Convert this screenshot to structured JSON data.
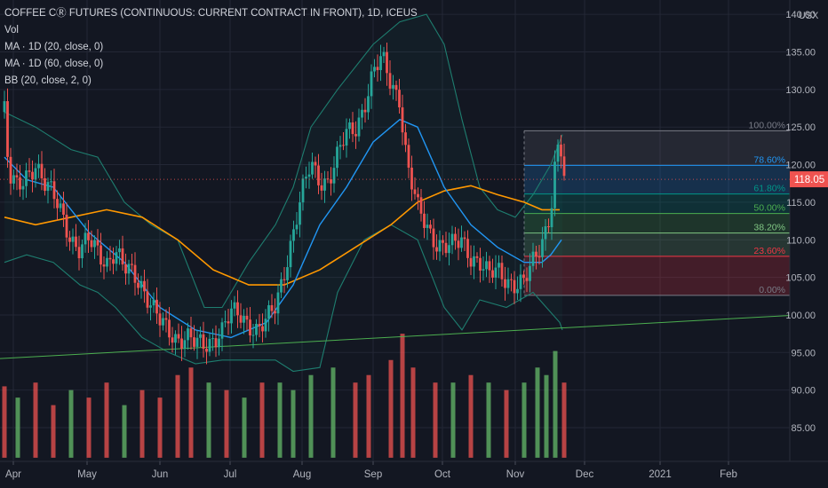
{
  "header": {
    "title": "COFFEE CⓇ FUTURES (CONTINUOUS: CURRENT CONTRACT IN FRONT), 1D, ICEUS",
    "indicators": [
      "Vol",
      "MA · 1D (20, close, 0)",
      "MA · 1D (60, close, 0)",
      "BB (20, close, 2, 0)"
    ],
    "currency": "USX"
  },
  "colors": {
    "background": "#131722",
    "grid": "#232735",
    "text": "#b2b5be",
    "up": "#26a69a",
    "down": "#ef5350",
    "ma20": "#2196f3",
    "ma60": "#ff9800",
    "bb": "#1e7d6f",
    "trendline": "#4caf50"
  },
  "chart_data": {
    "type": "candlestick",
    "symbol": "COFFEE CⓇ FUTURES (CONTINUOUS: CURRENT CONTRACT IN FRONT), 1D, ICEUS",
    "y_range": [
      80,
      145
    ],
    "y_ticks": [
      "85.00",
      "90.00",
      "95.00",
      "100.00",
      "105.00",
      "110.00",
      "115.00",
      "120.00",
      "125.00",
      "130.00",
      "135.00",
      "140.00"
    ],
    "x_ticks": [
      "Apr",
      "May",
      "Jun",
      "Jul",
      "Aug",
      "Sep",
      "Oct",
      "Nov",
      "Dec",
      "2021",
      "Feb"
    ],
    "last_price": "118.05",
    "series_close": [
      [
        5,
        127
      ],
      [
        10,
        118
      ],
      [
        20,
        117
      ],
      [
        30,
        119
      ],
      [
        40,
        120
      ],
      [
        50,
        117
      ],
      [
        60,
        116
      ],
      [
        70,
        114
      ],
      [
        80,
        110
      ],
      [
        90,
        108
      ],
      [
        100,
        110
      ],
      [
        110,
        109
      ],
      [
        120,
        107
      ],
      [
        130,
        108
      ],
      [
        140,
        106
      ],
      [
        150,
        106
      ],
      [
        160,
        104
      ],
      [
        170,
        101
      ],
      [
        180,
        99
      ],
      [
        190,
        98
      ],
      [
        200,
        97
      ],
      [
        210,
        97
      ],
      [
        220,
        96
      ],
      [
        230,
        96
      ],
      [
        240,
        97
      ],
      [
        250,
        98
      ],
      [
        260,
        100
      ],
      [
        270,
        100
      ],
      [
        280,
        99
      ],
      [
        290,
        98
      ],
      [
        300,
        99
      ],
      [
        310,
        101
      ],
      [
        320,
        106
      ],
      [
        330,
        111
      ],
      [
        340,
        116
      ],
      [
        350,
        120
      ],
      [
        360,
        118
      ],
      [
        370,
        118
      ],
      [
        380,
        121
      ],
      [
        390,
        124
      ],
      [
        400,
        125
      ],
      [
        410,
        128
      ],
      [
        420,
        132
      ],
      [
        430,
        134
      ],
      [
        440,
        131
      ],
      [
        450,
        129
      ],
      [
        455,
        123
      ],
      [
        460,
        119
      ],
      [
        470,
        114
      ],
      [
        480,
        112
      ],
      [
        490,
        110
      ],
      [
        500,
        109
      ],
      [
        510,
        109
      ],
      [
        520,
        110
      ],
      [
        530,
        108
      ],
      [
        540,
        107
      ],
      [
        550,
        105
      ],
      [
        560,
        106
      ],
      [
        570,
        105
      ],
      [
        580,
        104
      ],
      [
        590,
        104
      ],
      [
        600,
        107
      ],
      [
        610,
        110
      ],
      [
        620,
        114
      ],
      [
        625,
        120
      ],
      [
        630,
        123
      ],
      [
        635,
        118
      ]
    ],
    "ma20": [
      [
        5,
        121
      ],
      [
        30,
        118
      ],
      [
        60,
        117
      ],
      [
        100,
        111
      ],
      [
        140,
        107
      ],
      [
        180,
        101
      ],
      [
        220,
        98
      ],
      [
        260,
        97
      ],
      [
        300,
        99
      ],
      [
        330,
        104
      ],
      [
        360,
        112
      ],
      [
        390,
        117
      ],
      [
        420,
        123
      ],
      [
        450,
        126
      ],
      [
        470,
        125
      ],
      [
        500,
        117
      ],
      [
        530,
        112
      ],
      [
        560,
        109
      ],
      [
        590,
        107
      ],
      [
        610,
        107
      ],
      [
        620,
        108
      ],
      [
        632,
        110
      ]
    ],
    "ma60": [
      [
        5,
        113
      ],
      [
        40,
        112
      ],
      [
        80,
        113
      ],
      [
        120,
        114
      ],
      [
        160,
        113
      ],
      [
        200,
        110
      ],
      [
        240,
        106
      ],
      [
        280,
        104
      ],
      [
        320,
        104
      ],
      [
        360,
        106
      ],
      [
        400,
        109
      ],
      [
        440,
        112
      ],
      [
        470,
        115
      ],
      [
        500,
        116.5
      ],
      [
        530,
        117.2
      ],
      [
        560,
        116
      ],
      [
        590,
        115
      ],
      [
        610,
        114
      ],
      [
        630,
        114
      ]
    ],
    "bb_upper": [
      [
        5,
        127
      ],
      [
        40,
        125
      ],
      [
        80,
        122
      ],
      [
        110,
        121
      ],
      [
        140,
        115
      ],
      [
        170,
        112
      ],
      [
        200,
        110
      ],
      [
        230,
        101
      ],
      [
        250,
        101
      ],
      [
        280,
        107
      ],
      [
        310,
        112
      ],
      [
        330,
        117
      ],
      [
        350,
        125
      ],
      [
        380,
        130
      ],
      [
        420,
        136
      ],
      [
        450,
        139
      ],
      [
        480,
        140
      ],
      [
        500,
        136
      ],
      [
        520,
        126
      ],
      [
        540,
        117
      ],
      [
        560,
        114
      ],
      [
        580,
        113
      ],
      [
        600,
        116
      ],
      [
        620,
        120
      ],
      [
        633,
        124
      ]
    ],
    "bb_lower": [
      [
        5,
        107
      ],
      [
        30,
        108
      ],
      [
        60,
        107
      ],
      [
        90,
        104
      ],
      [
        110,
        103
      ],
      [
        130,
        101
      ],
      [
        160,
        97
      ],
      [
        190,
        95
      ],
      [
        220,
        93.5
      ],
      [
        250,
        94
      ],
      [
        280,
        94
      ],
      [
        310,
        94
      ],
      [
        330,
        92.5
      ],
      [
        360,
        93
      ],
      [
        380,
        103
      ],
      [
        410,
        110
      ],
      [
        440,
        112
      ],
      [
        470,
        110
      ],
      [
        500,
        101
      ],
      [
        520,
        98
      ],
      [
        540,
        102
      ],
      [
        570,
        101
      ],
      [
        600,
        103
      ],
      [
        615,
        101
      ],
      [
        630,
        99
      ],
      [
        633,
        98
      ]
    ],
    "fibonacci": {
      "levels": [
        {
          "label": "100.00%",
          "price": 124.5,
          "color": "#787b86"
        },
        {
          "label": "78.60%",
          "price": 119.9,
          "color": "#2196f3"
        },
        {
          "label": "61.80%",
          "price": 116.1,
          "color": "#009688"
        },
        {
          "label": "50.00%",
          "price": 113.5,
          "color": "#4caf50"
        },
        {
          "label": "38.20%",
          "price": 110.9,
          "color": "#81c784"
        },
        {
          "label": "23.60%",
          "price": 107.8,
          "color": "#f23645"
        },
        {
          "label": "0.00%",
          "price": 102.6,
          "color": "#787b86"
        }
      ]
    },
    "trendline": {
      "from": [
        0,
        94.2
      ],
      "to": [
        932,
        100.2
      ]
    },
    "volume_bars": [
      [
        5,
        90.5,
        "down"
      ],
      [
        20,
        89,
        "up"
      ],
      [
        40,
        91,
        "down"
      ],
      [
        60,
        88,
        "down"
      ],
      [
        80,
        90,
        "up"
      ],
      [
        100,
        89,
        "down"
      ],
      [
        120,
        91,
        "down"
      ],
      [
        140,
        88,
        "up"
      ],
      [
        160,
        90,
        "down"
      ],
      [
        180,
        89,
        "down"
      ],
      [
        200,
        92,
        "down"
      ],
      [
        215,
        93,
        "down"
      ],
      [
        235,
        91,
        "up"
      ],
      [
        255,
        90,
        "down"
      ],
      [
        275,
        89,
        "up"
      ],
      [
        295,
        91,
        "down"
      ],
      [
        315,
        91,
        "up"
      ],
      [
        330,
        90,
        "up"
      ],
      [
        350,
        92,
        "up"
      ],
      [
        375,
        93,
        "up"
      ],
      [
        400,
        91,
        "down"
      ],
      [
        415,
        92,
        "down"
      ],
      [
        440,
        94,
        "down"
      ],
      [
        453,
        97.5,
        "down"
      ],
      [
        465,
        93,
        "down"
      ],
      [
        490,
        91,
        "down"
      ],
      [
        510,
        91,
        "up"
      ],
      [
        530,
        92,
        "down"
      ],
      [
        550,
        91,
        "up"
      ],
      [
        570,
        90,
        "down"
      ],
      [
        590,
        91,
        "up"
      ],
      [
        605,
        93,
        "up"
      ],
      [
        615,
        92,
        "up"
      ],
      [
        625,
        95.2,
        "up"
      ],
      [
        635,
        91,
        "down"
      ]
    ]
  }
}
